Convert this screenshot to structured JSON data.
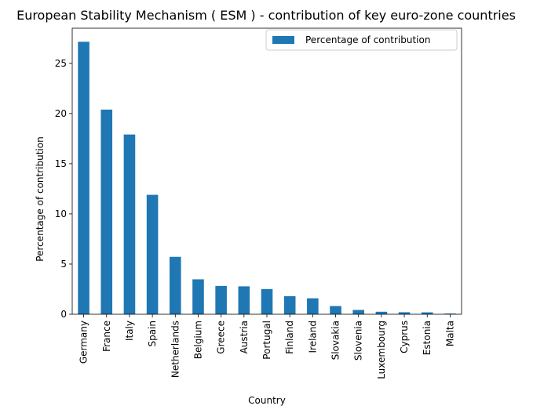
{
  "chart_data": {
    "type": "bar",
    "title": "European Stability Mechanism ( ESM ) - contribution of key euro-zone countries",
    "xlabel": "Country",
    "ylabel": "Percentage of contribution",
    "categories": [
      "Germany",
      "France",
      "Italy",
      "Spain",
      "Netherlands",
      "Belgium",
      "Greece",
      "Austria",
      "Portugal",
      "Finland",
      "Ireland",
      "Slovakia",
      "Slovenia",
      "Luxembourg",
      "Cyprus",
      "Estonia",
      "Malta"
    ],
    "series": [
      {
        "name": "Percentage of contribution",
        "values": [
          27.15,
          20.39,
          17.91,
          11.9,
          5.72,
          3.48,
          2.82,
          2.78,
          2.51,
          1.8,
          1.59,
          0.82,
          0.43,
          0.25,
          0.2,
          0.19,
          0.07
        ],
        "color": "#1f77b4"
      }
    ],
    "yticks": [
      0,
      5,
      10,
      15,
      20,
      25
    ],
    "ylim": [
      0,
      28.5
    ],
    "grid": false,
    "legend": "top-right"
  }
}
